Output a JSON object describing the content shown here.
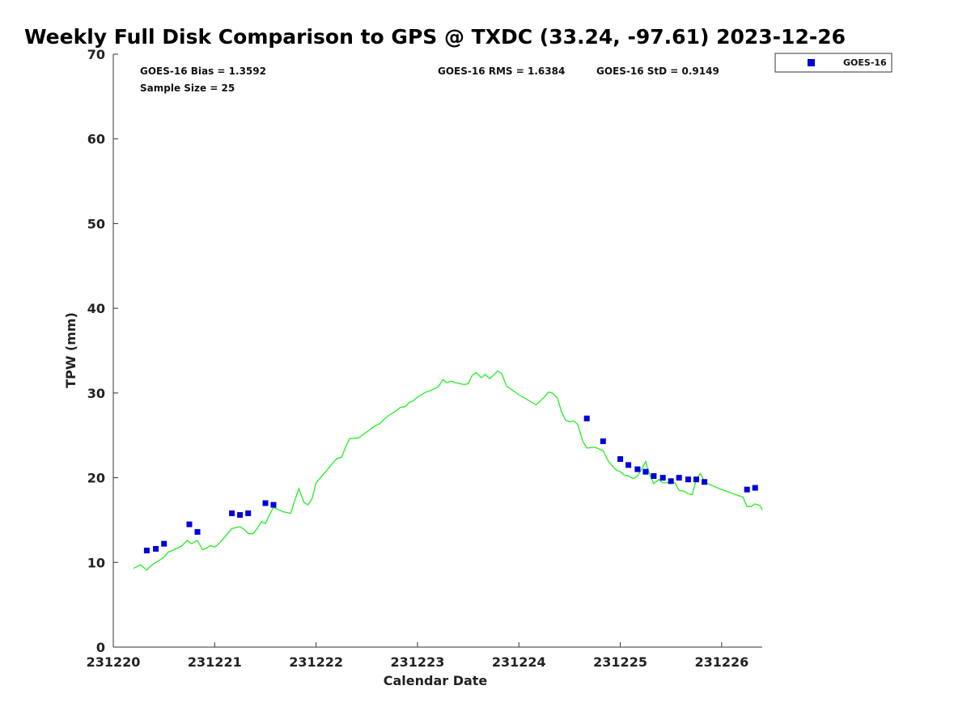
{
  "chart_data": {
    "type": "scatter",
    "title": "Weekly Full Disk Comparison to GPS @ TXDC (33.24, -97.61) 2023-12-26",
    "xlabel": "Calendar Date",
    "ylabel": "TPW (mm)",
    "xlim": [
      0,
      6.4
    ],
    "ylim": [
      0,
      70
    ],
    "x_ticks": [
      {
        "value": 0,
        "label": "231220"
      },
      {
        "value": 1,
        "label": "231221"
      },
      {
        "value": 2,
        "label": "231222"
      },
      {
        "value": 3,
        "label": "231223"
      },
      {
        "value": 4,
        "label": "231224"
      },
      {
        "value": 5,
        "label": "231225"
      },
      {
        "value": 6,
        "label": "231226"
      }
    ],
    "y_ticks": [
      "0",
      "10",
      "20",
      "30",
      "40",
      "50",
      "60",
      "70"
    ],
    "grid": false,
    "legend": {
      "placement": "top-right",
      "entries": [
        "GOES-16"
      ]
    },
    "stats": {
      "bias": "GOES-16 Bias = 1.3592",
      "rms": "GOES-16 RMS = 1.6384",
      "std": "GOES-16 StD = 0.9149",
      "sample": "Sample Size = 25"
    },
    "colors": {
      "goes": "#0000d8",
      "gps": "#22ee22"
    },
    "series": [
      {
        "name": "GOES-16",
        "kind": "scatter",
        "x": [
          0.33,
          0.42,
          0.5,
          0.75,
          0.83,
          1.17,
          1.25,
          1.33,
          1.5,
          1.58,
          4.67,
          4.83,
          5.0,
          5.08,
          5.17,
          5.25,
          5.33,
          5.42,
          5.5,
          5.58,
          5.67,
          5.75,
          5.83,
          6.25,
          6.33
        ],
        "y": [
          11.4,
          11.6,
          12.2,
          14.5,
          13.6,
          15.8,
          15.6,
          15.8,
          17.0,
          16.8,
          27.0,
          24.3,
          22.2,
          21.5,
          21.0,
          20.7,
          20.2,
          20.0,
          19.6,
          20.0,
          19.8,
          19.8,
          19.5,
          18.6,
          18.8
        ]
      },
      {
        "kind": "line",
        "x": [
          0.2,
          0.27,
          0.33,
          0.38,
          0.42,
          0.5,
          0.54,
          0.58,
          0.67,
          0.73,
          0.77,
          0.83,
          0.88,
          0.92,
          0.96,
          1.0,
          1.04,
          1.1,
          1.17,
          1.25,
          1.29,
          1.33,
          1.38,
          1.42,
          1.46,
          1.5,
          1.54,
          1.58,
          1.67,
          1.75,
          1.79,
          1.83,
          1.88,
          1.92,
          1.96,
          2.0,
          2.08,
          2.17,
          2.21,
          2.25,
          2.29,
          2.33,
          2.42,
          2.5,
          2.58,
          2.63,
          2.67,
          2.71,
          2.75,
          2.79,
          2.83,
          2.88,
          2.92,
          2.96,
          3.0,
          3.04,
          3.08,
          3.13,
          3.17,
          3.21,
          3.25,
          3.29,
          3.33,
          3.38,
          3.42,
          3.46,
          3.5,
          3.54,
          3.58,
          3.63,
          3.67,
          3.71,
          3.75,
          3.79,
          3.83,
          3.88,
          4.0,
          4.17,
          4.25,
          4.29,
          4.33,
          4.38,
          4.42,
          4.46,
          4.5,
          4.54,
          4.58,
          4.63,
          4.67,
          4.75,
          4.79,
          4.83,
          4.88,
          4.92,
          4.96,
          5.0,
          5.04,
          5.08,
          5.13,
          5.17,
          5.21,
          5.25,
          5.29,
          5.33,
          5.38,
          5.42,
          5.46,
          5.5,
          5.54,
          5.58,
          5.63,
          5.67,
          5.71,
          5.75,
          5.79,
          5.83,
          5.88,
          6.0,
          6.21,
          6.25,
          6.29,
          6.33,
          6.38,
          6.4
        ],
        "y": [
          9.3,
          9.7,
          9.1,
          9.7,
          10.0,
          10.6,
          11.2,
          11.4,
          11.9,
          12.6,
          12.2,
          12.6,
          11.5,
          11.7,
          12.0,
          11.8,
          12.2,
          13.0,
          14.0,
          14.2,
          13.9,
          13.4,
          13.4,
          14.0,
          14.8,
          14.6,
          15.6,
          16.5,
          16.0,
          15.8,
          17.3,
          18.7,
          17.1,
          16.8,
          17.5,
          19.4,
          20.5,
          21.8,
          22.3,
          22.4,
          23.6,
          24.6,
          24.7,
          25.4,
          26.1,
          26.4,
          26.9,
          27.3,
          27.6,
          27.9,
          28.3,
          28.4,
          28.9,
          29.1,
          29.5,
          29.8,
          30.1,
          30.3,
          30.5,
          30.8,
          31.6,
          31.2,
          31.4,
          31.2,
          31.1,
          31.0,
          31.1,
          32.1,
          32.4,
          31.8,
          32.2,
          31.7,
          32.1,
          32.6,
          32.3,
          30.8,
          29.8,
          28.6,
          29.5,
          30.1,
          30.0,
          29.4,
          27.8,
          26.8,
          26.6,
          26.7,
          26.3,
          24.3,
          23.5,
          23.6,
          23.4,
          23.2,
          22.0,
          21.4,
          20.9,
          20.7,
          20.3,
          20.2,
          19.9,
          20.2,
          21.0,
          21.9,
          20.4,
          19.3,
          19.8,
          19.4,
          19.4,
          19.5,
          19.4,
          18.5,
          18.4,
          18.1,
          18.0,
          19.8,
          20.5,
          19.5,
          19.2,
          18.6,
          17.7,
          16.6,
          16.6,
          16.9,
          16.7,
          16.2
        ]
      }
    ]
  }
}
